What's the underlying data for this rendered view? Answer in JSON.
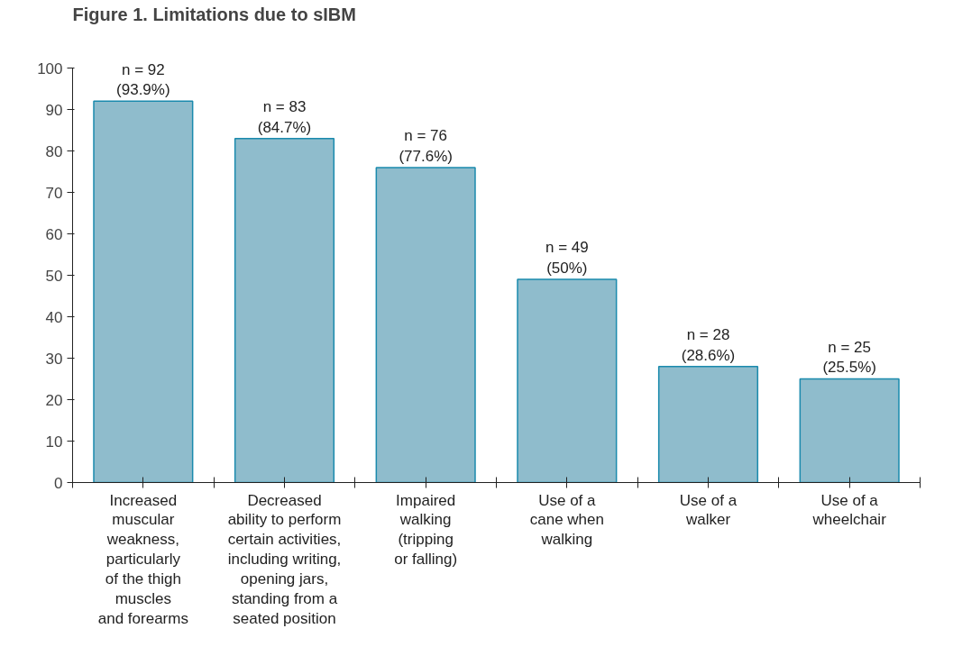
{
  "chart_data": {
    "type": "bar",
    "title": "Figure 1.   Limitations due to sIBM",
    "categories": [
      "Increased\nmuscular\nweakness,\nparticularly\nof the thigh\nmuscles\nand forearms",
      "Decreased\nability to perform\ncertain activities,\nincluding writing,\nopening jars,\nstanding from a\nseated position",
      "Impaired\nwalking\n(tripping\nor falling)",
      "Use of a\ncane when\nwalking",
      "Use of a\nwalker",
      "Use of a\nwheelchair"
    ],
    "values": [
      92,
      83,
      76,
      49,
      28,
      25
    ],
    "value_labels": [
      "n = 92\n(93.9%)",
      "n = 83\n(84.7%)",
      "n = 76\n(77.6%)",
      "n = 49\n(50%)",
      "n = 28\n(28.6%)",
      "n = 25\n(25.5%)"
    ],
    "color": "#8fbccc",
    "ylim": [
      0,
      100
    ],
    "yticks": [
      0,
      10,
      20,
      30,
      40,
      50,
      60,
      70,
      80,
      90,
      100
    ],
    "grid": false
  }
}
